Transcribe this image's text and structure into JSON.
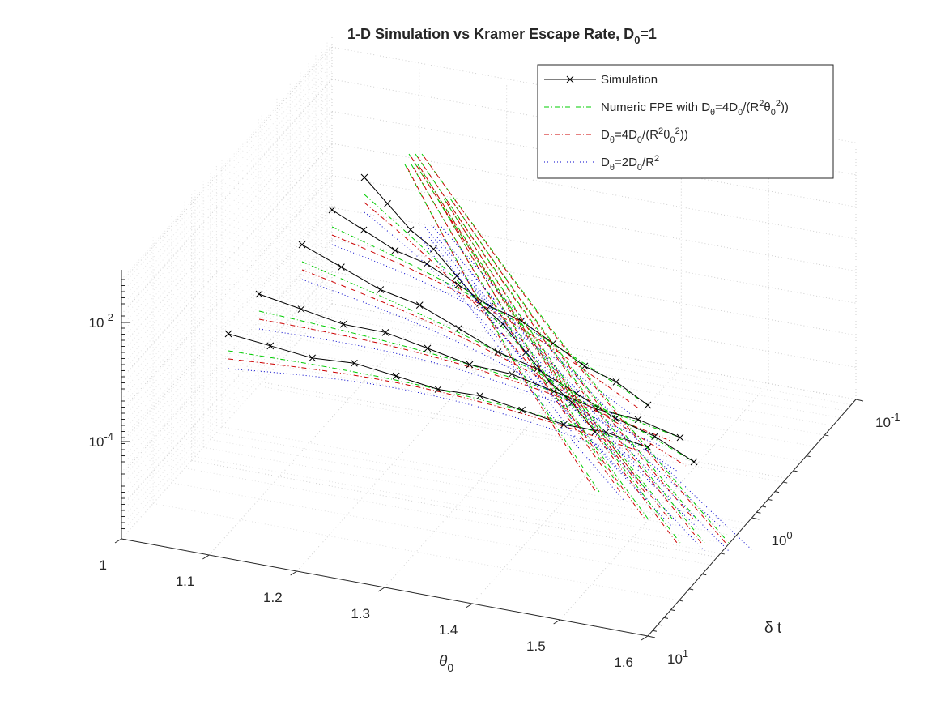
{
  "chart_data": {
    "type": "line",
    "projection": "3d",
    "title": "1-D Simulation vs Kramer Escape Rate, D",
    "title_sub": "0",
    "title_suffix": "=1",
    "xlabel": "θ",
    "xlabel_sub": "0",
    "ylabel": "δ t",
    "zlabel": "",
    "x_ticks": [
      "1",
      "1.1",
      "1.2",
      "1.3",
      "1.4",
      "1.5",
      "1.6"
    ],
    "y_ticks": [
      {
        "base": "10",
        "exp": "-1"
      },
      {
        "base": "10",
        "exp": "0"
      },
      {
        "base": "10",
        "exp": "1"
      }
    ],
    "z_ticks": [
      {
        "base": "10",
        "exp": "-2"
      },
      {
        "base": "10",
        "exp": "-4"
      }
    ],
    "xlim": [
      1,
      1.6
    ],
    "ylim": [
      0.1,
      10
    ],
    "yscale": "log",
    "zscale": "log",
    "grid": true,
    "minor_grid": true,
    "legend_position": "top-right",
    "legend": [
      {
        "name": "Simulation",
        "color": "#000000",
        "style": "solid",
        "marker": "x"
      },
      {
        "name": "Numeric FPE with D_θ=4D_0/(R^2θ_0^2))",
        "color": "#00cc00",
        "style": "dashdot"
      },
      {
        "name": "D_θ=4D_0/(R^2θ_0^2))",
        "color": "#cc0000",
        "style": "dashdot"
      },
      {
        "name": "D_θ=2D_0/R^2",
        "color": "#0000cc",
        "style": "dotted"
      }
    ],
    "legend_parts": [
      [
        [
          "Simulation",
          ""
        ]
      ],
      [
        [
          "Numeric FPE with D",
          ""
        ],
        [
          "θ",
          "sub"
        ],
        [
          "=4D",
          ""
        ],
        [
          "0",
          "sub"
        ],
        [
          "/(R",
          ""
        ],
        [
          "2",
          "sup"
        ],
        [
          "θ",
          ""
        ],
        [
          "0",
          "sub"
        ],
        [
          "2",
          "sup"
        ],
        [
          "))",
          ""
        ]
      ],
      [
        [
          "D",
          ""
        ],
        [
          "θ",
          "sub"
        ],
        [
          "=4D",
          ""
        ],
        [
          "0",
          "sub"
        ],
        [
          "/(R",
          ""
        ],
        [
          "2",
          "sup"
        ],
        [
          "θ",
          ""
        ],
        [
          "0",
          "sub"
        ],
        [
          "2",
          "sup"
        ],
        [
          "))",
          ""
        ]
      ],
      [
        [
          "D",
          ""
        ],
        [
          "θ",
          "sub"
        ],
        [
          "=2D",
          ""
        ],
        [
          "0",
          "sub"
        ],
        [
          "/R",
          ""
        ],
        [
          "2",
          "sup"
        ]
      ]
    ],
    "series_along_dt": [
      {
        "theta0": 1.0,
        "dt": [
          0.1,
          0.2,
          0.5,
          1,
          2,
          5,
          10
        ],
        "simulation": [
          0.003,
          0.0012,
          0.0006,
          0.00018,
          6e-05,
          2e-05,
          6e-06
        ]
      }
    ],
    "colors": {
      "simulation": "#000000",
      "numeric": "#00cc00",
      "kramer": "#cc0000",
      "kramer_const": "#0000cc",
      "grid": "#d0d0d0",
      "axis": "#262626"
    }
  }
}
